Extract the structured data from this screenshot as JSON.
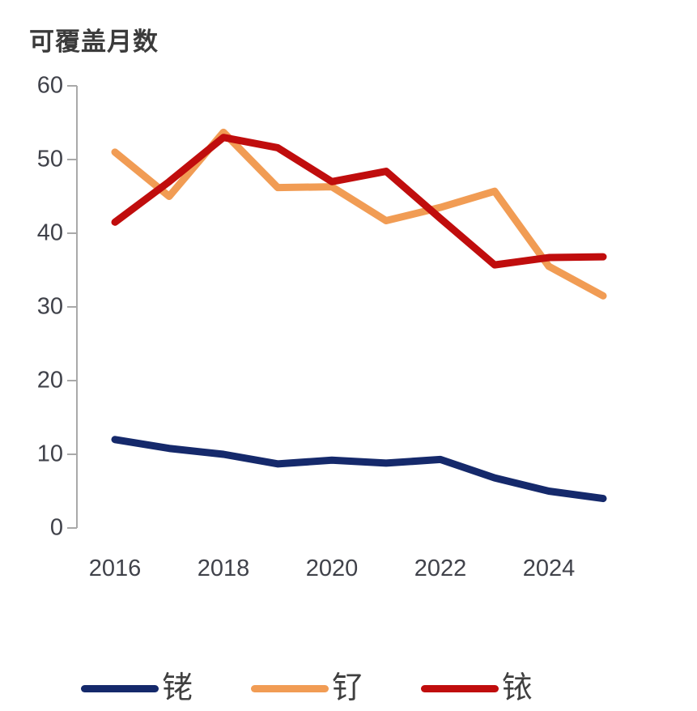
{
  "title": "可覆盖月数",
  "colors": {
    "rhodium_navy": "#15296b",
    "ruthenium_orange": "#f19c54",
    "iridium_red": "#c00d0d",
    "axis_gray": "#a9a9a9",
    "text_dark": "#40424a",
    "title_dark": "#3b3b3b"
  },
  "chart_data": {
    "type": "line",
    "title": "可覆盖月数",
    "x": [
      2016,
      2017,
      2018,
      2019,
      2020,
      2021,
      2022,
      2023,
      2024,
      2025
    ],
    "series": [
      {
        "name": "铑",
        "color": "#15296b",
        "values": [
          12,
          10.8,
          10,
          8.7,
          9.2,
          8.8,
          9.3,
          6.8,
          5,
          4
        ]
      },
      {
        "name": "钌",
        "color": "#f19c54",
        "values": [
          51,
          45,
          53.7,
          46.2,
          46.3,
          41.7,
          43.5,
          45.7,
          35.5,
          31.5
        ]
      },
      {
        "name": "铱",
        "color": "#c00d0d",
        "values": [
          41.5,
          47,
          53,
          51.6,
          47,
          48.4,
          42,
          35.7,
          36.7,
          36.8
        ]
      }
    ],
    "ylim": [
      0,
      60
    ],
    "yticks_top_to_bottom": [
      "60",
      "50",
      "40",
      "30",
      "20",
      "10",
      "0"
    ],
    "xticks": [
      "2016",
      "2018",
      "2020",
      "2022",
      "2024"
    ],
    "grid": false,
    "legend_position": "bottom",
    "axes_shown": "left-only"
  }
}
